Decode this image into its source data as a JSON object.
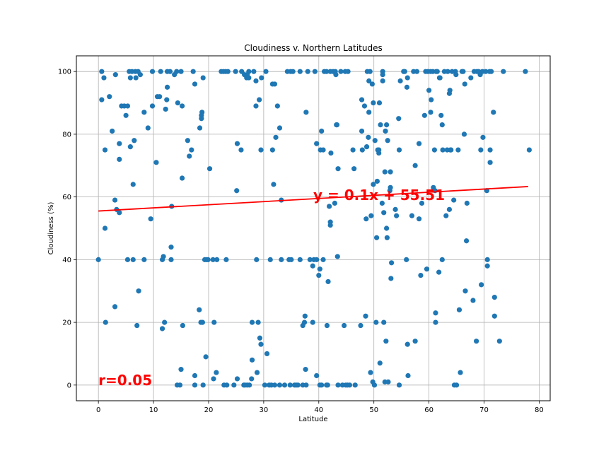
{
  "chart_data": {
    "type": "scatter",
    "title": "Cloudiness v. Northern Latitudes",
    "xlabel": "Latitude",
    "ylabel": "Cloudiness (%)",
    "xlim": [
      -4,
      82
    ],
    "ylim": [
      -5,
      105
    ],
    "xticks": [
      0,
      10,
      20,
      30,
      40,
      50,
      60,
      70,
      80
    ],
    "yticks": [
      0,
      20,
      40,
      60,
      80,
      100
    ],
    "grid": true,
    "colors": {
      "points": "#1f77b4",
      "regression": "#ff0000",
      "annotation": "#ff0000"
    },
    "regression": {
      "slope": 0.1,
      "intercept": 55.51,
      "x_range": [
        0,
        78
      ]
    },
    "annotations": {
      "equation": {
        "text": "y = 0.1x + 55.51",
        "x": 39,
        "y": 59
      },
      "r_value": {
        "text": "r=0.05",
        "x": 0,
        "y": 0
      }
    },
    "points": [
      [
        0,
        40
      ],
      [
        0.6,
        100
      ],
      [
        0.6,
        91
      ],
      [
        1,
        98
      ],
      [
        1.2,
        75
      ],
      [
        1.2,
        50
      ],
      [
        1.3,
        20
      ],
      [
        2,
        92
      ],
      [
        2.5,
        81
      ],
      [
        3,
        59
      ],
      [
        3,
        25
      ],
      [
        3.1,
        99
      ],
      [
        3.3,
        56
      ],
      [
        3.8,
        55
      ],
      [
        3.8,
        72
      ],
      [
        3.8,
        77
      ],
      [
        4.2,
        89
      ],
      [
        4.7,
        89
      ],
      [
        5,
        86
      ],
      [
        5.3,
        89
      ],
      [
        5.3,
        40
      ],
      [
        5.6,
        100
      ],
      [
        5.8,
        98
      ],
      [
        5.8,
        76
      ],
      [
        6.1,
        100
      ],
      [
        6.3,
        64
      ],
      [
        6.3,
        40
      ],
      [
        6.5,
        78
      ],
      [
        6.7,
        100
      ],
      [
        6.8,
        98
      ],
      [
        7,
        19
      ],
      [
        7.2,
        100
      ],
      [
        7.3,
        30
      ],
      [
        7.6,
        99
      ],
      [
        8.3,
        87
      ],
      [
        8.3,
        40
      ],
      [
        9,
        82
      ],
      [
        9.5,
        53
      ],
      [
        9.8,
        100
      ],
      [
        9.8,
        89
      ],
      [
        10.5,
        71
      ],
      [
        10.7,
        92
      ],
      [
        11.1,
        92
      ],
      [
        11.3,
        100
      ],
      [
        11.6,
        40
      ],
      [
        11.6,
        18
      ],
      [
        11.8,
        41
      ],
      [
        12,
        20
      ],
      [
        12.2,
        88
      ],
      [
        12.4,
        91
      ],
      [
        12.5,
        95
      ],
      [
        12.5,
        100
      ],
      [
        13,
        100
      ],
      [
        13.2,
        40
      ],
      [
        13.2,
        44
      ],
      [
        13.3,
        57
      ],
      [
        13.8,
        99
      ],
      [
        14.2,
        100
      ],
      [
        14.3,
        0
      ],
      [
        14.4,
        90
      ],
      [
        14.8,
        0
      ],
      [
        15,
        5
      ],
      [
        15,
        100
      ],
      [
        15.2,
        89
      ],
      [
        15.2,
        66
      ],
      [
        15.3,
        19
      ],
      [
        16.2,
        78
      ],
      [
        16.5,
        73
      ],
      [
        16.9,
        75
      ],
      [
        17.2,
        100
      ],
      [
        17.5,
        96
      ],
      [
        17.5,
        3
      ],
      [
        17.5,
        0
      ],
      [
        18.3,
        24
      ],
      [
        18.4,
        82
      ],
      [
        18.6,
        20
      ],
      [
        18.7,
        86
      ],
      [
        18.7,
        85
      ],
      [
        18.8,
        87
      ],
      [
        18.9,
        20
      ],
      [
        19,
        98
      ],
      [
        19,
        0
      ],
      [
        19.3,
        40
      ],
      [
        19.5,
        9
      ],
      [
        19.6,
        40
      ],
      [
        19.9,
        40
      ],
      [
        20.2,
        69
      ],
      [
        20.8,
        40
      ],
      [
        20.9,
        2
      ],
      [
        21,
        20
      ],
      [
        21.4,
        4
      ],
      [
        21.5,
        40
      ],
      [
        22.3,
        100
      ],
      [
        22.7,
        100
      ],
      [
        22.8,
        0
      ],
      [
        23.1,
        100
      ],
      [
        23.2,
        40
      ],
      [
        23.3,
        0
      ],
      [
        23.5,
        100
      ],
      [
        24.6,
        0
      ],
      [
        24.9,
        100
      ],
      [
        25.1,
        62
      ],
      [
        25.2,
        77
      ],
      [
        25.2,
        2
      ],
      [
        25.9,
        75
      ],
      [
        26,
        100
      ],
      [
        26.4,
        0
      ],
      [
        26.5,
        99
      ],
      [
        26.6,
        0
      ],
      [
        26.9,
        98
      ],
      [
        27,
        99
      ],
      [
        27,
        0
      ],
      [
        27.3,
        100
      ],
      [
        27.3,
        98
      ],
      [
        27.4,
        0
      ],
      [
        27.8,
        2
      ],
      [
        27.9,
        8
      ],
      [
        27.9,
        20
      ],
      [
        28.2,
        100
      ],
      [
        28.6,
        97
      ],
      [
        28.6,
        89
      ],
      [
        28.7,
        40
      ],
      [
        28.8,
        4
      ],
      [
        29,
        20
      ],
      [
        29.2,
        91
      ],
      [
        29.3,
        15
      ],
      [
        29.5,
        13
      ],
      [
        29.5,
        75
      ],
      [
        29.6,
        98
      ],
      [
        30.2,
        0
      ],
      [
        30.4,
        100
      ],
      [
        30.6,
        10
      ],
      [
        31,
        0
      ],
      [
        31.2,
        40
      ],
      [
        31.4,
        0
      ],
      [
        31.6,
        96
      ],
      [
        31.6,
        75
      ],
      [
        31.8,
        64
      ],
      [
        32,
        96
      ],
      [
        32,
        0
      ],
      [
        32.2,
        79
      ],
      [
        32.5,
        89
      ],
      [
        32.9,
        82
      ],
      [
        32.9,
        0
      ],
      [
        33.2,
        59
      ],
      [
        33.2,
        40
      ],
      [
        33.8,
        0
      ],
      [
        34.3,
        100
      ],
      [
        34.6,
        40
      ],
      [
        34.8,
        0
      ],
      [
        34.9,
        100
      ],
      [
        35,
        40
      ],
      [
        35.3,
        100
      ],
      [
        35.6,
        0
      ],
      [
        35.9,
        0
      ],
      [
        36.2,
        0
      ],
      [
        36.6,
        100
      ],
      [
        36.6,
        40
      ],
      [
        37.1,
        0
      ],
      [
        37.1,
        19
      ],
      [
        37.4,
        20
      ],
      [
        37.5,
        22
      ],
      [
        37.6,
        5
      ],
      [
        37.7,
        87
      ],
      [
        37.7,
        0
      ],
      [
        38,
        100
      ],
      [
        38.4,
        40
      ],
      [
        38.9,
        38
      ],
      [
        38.9,
        20
      ],
      [
        39.1,
        40
      ],
      [
        39.3,
        100
      ],
      [
        39.6,
        77
      ],
      [
        39.6,
        40
      ],
      [
        39.6,
        3
      ],
      [
        40,
        35
      ],
      [
        40.2,
        0
      ],
      [
        40.2,
        37
      ],
      [
        40.3,
        75
      ],
      [
        40.5,
        81
      ],
      [
        40.5,
        0
      ],
      [
        40.8,
        40
      ],
      [
        40.8,
        75
      ],
      [
        41,
        100
      ],
      [
        41.4,
        100
      ],
      [
        41.4,
        0
      ],
      [
        41.5,
        19
      ],
      [
        41.6,
        0
      ],
      [
        41.7,
        33
      ],
      [
        41.9,
        57
      ],
      [
        42.1,
        100
      ],
      [
        42.1,
        51
      ],
      [
        42.1,
        52
      ],
      [
        42.2,
        74
      ],
      [
        42.6,
        100
      ],
      [
        42.9,
        58
      ],
      [
        43,
        100
      ],
      [
        43.1,
        99
      ],
      [
        43.2,
        83
      ],
      [
        43.3,
        83
      ],
      [
        43.4,
        41
      ],
      [
        43.5,
        0
      ],
      [
        43.5,
        69
      ],
      [
        44,
        100
      ],
      [
        44.3,
        0
      ],
      [
        44.6,
        19
      ],
      [
        44.8,
        100
      ],
      [
        44.9,
        0
      ],
      [
        45.2,
        0
      ],
      [
        45.3,
        100
      ],
      [
        45.6,
        0
      ],
      [
        46.2,
        75
      ],
      [
        46.4,
        69
      ],
      [
        46.6,
        0
      ],
      [
        47.6,
        19
      ],
      [
        47.8,
        91
      ],
      [
        47.8,
        81
      ],
      [
        47.9,
        75
      ],
      [
        48.3,
        89
      ],
      [
        48.5,
        22
      ],
      [
        48.6,
        53
      ],
      [
        48.7,
        76
      ],
      [
        48.8,
        100
      ],
      [
        49,
        79
      ],
      [
        49.1,
        87
      ],
      [
        49.1,
        97
      ],
      [
        49.3,
        100
      ],
      [
        49.4,
        4
      ],
      [
        49.5,
        54
      ],
      [
        49.7,
        96
      ],
      [
        49.8,
        1
      ],
      [
        49.9,
        90
      ],
      [
        49.9,
        64
      ],
      [
        50.1,
        0
      ],
      [
        50.2,
        78
      ],
      [
        50.4,
        20
      ],
      [
        50.5,
        47
      ],
      [
        50.6,
        65
      ],
      [
        50.7,
        75
      ],
      [
        50.9,
        74
      ],
      [
        50.9,
        75
      ],
      [
        51,
        90
      ],
      [
        51.1,
        7
      ],
      [
        51.2,
        83
      ],
      [
        51.5,
        58
      ],
      [
        51.6,
        97
      ],
      [
        51.6,
        99
      ],
      [
        51.6,
        100
      ],
      [
        51.8,
        55
      ],
      [
        51.8,
        20
      ],
      [
        52,
        68
      ],
      [
        52,
        1
      ],
      [
        52.1,
        81
      ],
      [
        52.2,
        14
      ],
      [
        52.3,
        50
      ],
      [
        52.3,
        83
      ],
      [
        52.4,
        47
      ],
      [
        52.5,
        78
      ],
      [
        52.6,
        1
      ],
      [
        52.9,
        62
      ],
      [
        53,
        68
      ],
      [
        53,
        63
      ],
      [
        53.1,
        34
      ],
      [
        53.2,
        39
      ],
      [
        53.9,
        56
      ],
      [
        54.1,
        54
      ],
      [
        54.5,
        85
      ],
      [
        54.6,
        75
      ],
      [
        54.6,
        0
      ],
      [
        54.8,
        97
      ],
      [
        55.4,
        100
      ],
      [
        55.6,
        100
      ],
      [
        55.9,
        40
      ],
      [
        56,
        95
      ],
      [
        56.1,
        98
      ],
      [
        56.1,
        13
      ],
      [
        56.2,
        3
      ],
      [
        56.9,
        54
      ],
      [
        57.2,
        100
      ],
      [
        57.5,
        14
      ],
      [
        57.5,
        70
      ],
      [
        57.8,
        100
      ],
      [
        58.2,
        77
      ],
      [
        58.2,
        53
      ],
      [
        58.5,
        35
      ],
      [
        58.7,
        58
      ],
      [
        59.2,
        86
      ],
      [
        59.4,
        100
      ],
      [
        59.6,
        37
      ],
      [
        59.8,
        100
      ],
      [
        60,
        94
      ],
      [
        60.3,
        100
      ],
      [
        60.3,
        87
      ],
      [
        60.4,
        91
      ],
      [
        60.7,
        100
      ],
      [
        60.8,
        63
      ],
      [
        61,
        75
      ],
      [
        61.1,
        62
      ],
      [
        61.2,
        23
      ],
      [
        61.2,
        20
      ],
      [
        61.3,
        100
      ],
      [
        61.5,
        100
      ],
      [
        61.8,
        36
      ],
      [
        61.9,
        98
      ],
      [
        62,
        98
      ],
      [
        62.2,
        86
      ],
      [
        62.4,
        40
      ],
      [
        62.4,
        83
      ],
      [
        62.5,
        75
      ],
      [
        62.8,
        100
      ],
      [
        63.1,
        54
      ],
      [
        63.3,
        75
      ],
      [
        63.4,
        100
      ],
      [
        63.7,
        93
      ],
      [
        63.7,
        56
      ],
      [
        63.8,
        94
      ],
      [
        63.9,
        75
      ],
      [
        64,
        75
      ],
      [
        64.2,
        100
      ],
      [
        64.5,
        59
      ],
      [
        64.6,
        0
      ],
      [
        64.8,
        100
      ],
      [
        64.9,
        99
      ],
      [
        65,
        0
      ],
      [
        65.3,
        75
      ],
      [
        65.5,
        24
      ],
      [
        65.7,
        4
      ],
      [
        66,
        100
      ],
      [
        66.2,
        100
      ],
      [
        66.4,
        80
      ],
      [
        66.5,
        96
      ],
      [
        66.6,
        30
      ],
      [
        66.8,
        46
      ],
      [
        66.9,
        58
      ],
      [
        67.6,
        98
      ],
      [
        68,
        27
      ],
      [
        68.2,
        100
      ],
      [
        68.6,
        14
      ],
      [
        68.7,
        100
      ],
      [
        69,
        100
      ],
      [
        69.3,
        99
      ],
      [
        69.4,
        75
      ],
      [
        69.5,
        32
      ],
      [
        69.7,
        100
      ],
      [
        69.8,
        79
      ],
      [
        70.3,
        100
      ],
      [
        70.5,
        62
      ],
      [
        70.6,
        40
      ],
      [
        70.6,
        38
      ],
      [
        71,
        100
      ],
      [
        71.1,
        75
      ],
      [
        71.1,
        71
      ],
      [
        71.3,
        100
      ],
      [
        71.7,
        87
      ],
      [
        71.9,
        28
      ],
      [
        71.9,
        22
      ],
      [
        72.8,
        14
      ],
      [
        73.5,
        100
      ],
      [
        77.5,
        100
      ],
      [
        78.2,
        75
      ]
    ]
  }
}
